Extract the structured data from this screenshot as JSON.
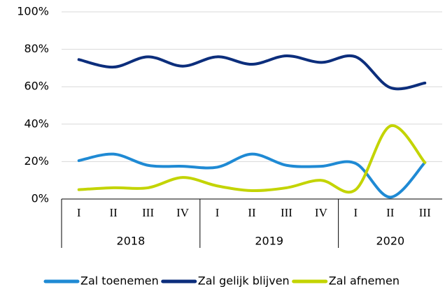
{
  "chart_data": {
    "type": "line",
    "categories": [
      "I",
      "II",
      "III",
      "IV",
      "I",
      "II",
      "III",
      "IV",
      "I",
      "II",
      "III"
    ],
    "groups": [
      {
        "name": "2018",
        "count": 4
      },
      {
        "name": "2019",
        "count": 4
      },
      {
        "name": "2020",
        "count": 3
      }
    ],
    "series": [
      {
        "name": "Zal toenemen",
        "color": "#1f8ad4",
        "values": [
          20.5,
          24,
          18,
          17.5,
          17,
          24,
          18,
          17.5,
          19,
          1,
          19.5
        ]
      },
      {
        "name": "Zal gelijk blijven",
        "color": "#0c2e7c",
        "values": [
          74.5,
          70.5,
          76,
          71,
          76,
          72,
          76.5,
          73,
          76,
          59.5,
          62
        ]
      },
      {
        "name": "Zal afnemen",
        "color": "#c3d400",
        "values": [
          5,
          6,
          6,
          11.5,
          7,
          4.5,
          6,
          10,
          5,
          39,
          19.5
        ]
      }
    ],
    "ylim": [
      0,
      100
    ],
    "yticks": [
      {
        "value": 0,
        "label": "0%"
      },
      {
        "value": 20,
        "label": "20%"
      },
      {
        "value": 40,
        "label": "40%"
      },
      {
        "value": 60,
        "label": "60%"
      },
      {
        "value": 80,
        "label": "80%"
      },
      {
        "value": 100,
        "label": "100%"
      }
    ],
    "grid": true,
    "smooth": true,
    "legend": "bottom"
  }
}
